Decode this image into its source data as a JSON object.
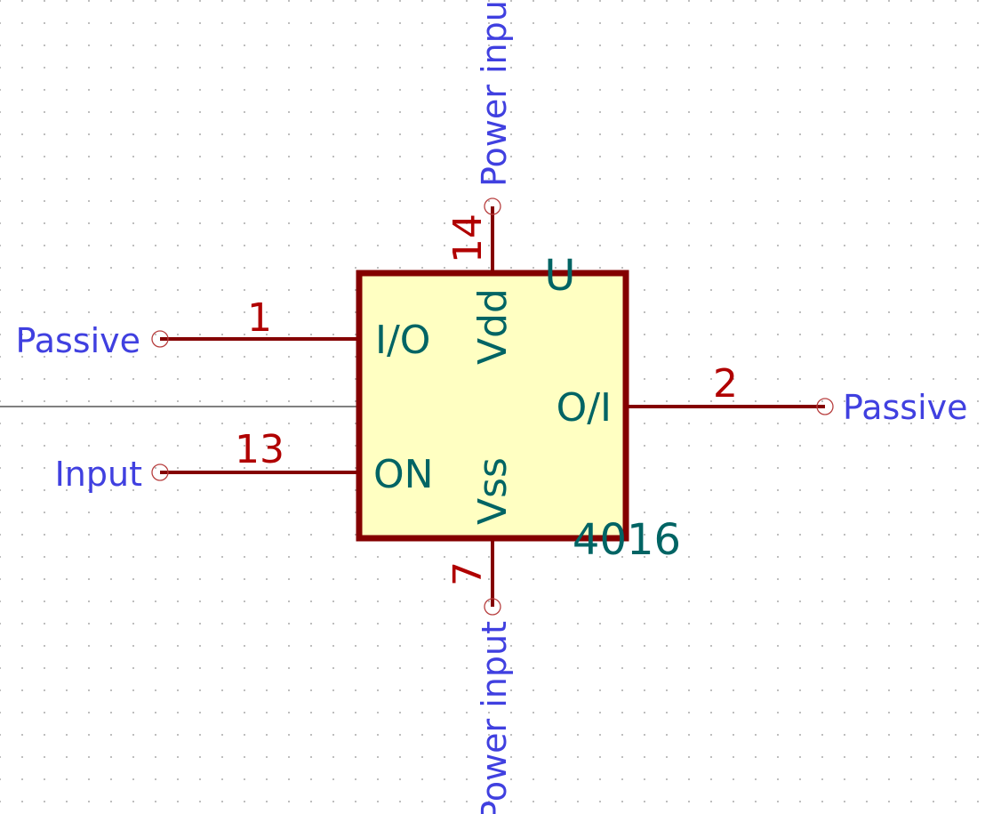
{
  "component": {
    "reference": "U",
    "value": "4016"
  },
  "pins": [
    {
      "number": "1",
      "name": "I/O",
      "electrical_type": "Passive"
    },
    {
      "number": "13",
      "name": "ON",
      "electrical_type": "Input"
    },
    {
      "number": "2",
      "name": "O/I",
      "electrical_type": "Passive"
    },
    {
      "number": "14",
      "name": "Vdd",
      "electrical_type": "Power input"
    },
    {
      "number": "7",
      "name": "Vss",
      "electrical_type": "Power input"
    }
  ],
  "colors": {
    "pin": "#840000",
    "pin_number": "#b00000",
    "body_fill": "#ffffc2",
    "pin_name": "#006464",
    "electrical_type": "#4040e0",
    "grid": "#b4b4b4"
  }
}
